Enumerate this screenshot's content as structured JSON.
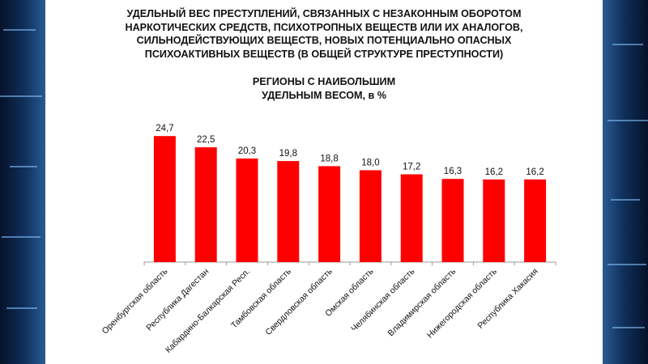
{
  "title_lines": [
    "УДЕЛЬНЫЙ ВЕС ПРЕСТУПЛЕНИЙ, СВЯЗАННЫХ С НЕЗАКОННЫМ ОБОРОТОМ",
    "НАРКОТИЧЕСКИХ СРЕДСТВ, ПСИХОТРОПНЫХ ВЕЩЕСТВ ИЛИ ИХ АНАЛОГОВ,",
    "СИЛЬНОДЕЙСТВУЮЩИХ ВЕЩЕСТВ, НОВЫХ ПОТЕНЦИАЛЬНО ОПАСНЫХ",
    "ПСИХОАКТИВНЫХ ВЕЩЕСТВ (В ОБЩЕЙ СТРУКТУРЕ ПРЕСТУПНОСТИ)"
  ],
  "subtitle_lines": [
    "РЕГИОНЫ С НАИБОЛЬШИМ",
    "УДЕЛЬНЫМ ВЕСОМ, в %"
  ],
  "colors": {
    "bar": "#ff0000",
    "axis": "#999999",
    "text": "#111111",
    "background": "#ffffff"
  },
  "chart_data": {
    "type": "bar",
    "title": "УДЕЛЬНЫЙ ВЕС ПРЕСТУПЛЕНИЙ, СВЯЗАННЫХ С НЕЗАКОННЫМ ОБОРОТОМ НАРКОТИЧЕСКИХ СРЕДСТВ, ПСИХОТРОПНЫХ ВЕЩЕСТВ ИЛИ ИХ АНАЛОГОВ, СИЛЬНОДЕЙСТВУЮЩИХ ВЕЩЕСТВ, НОВЫХ ПОТЕНЦИАЛЬНО ОПАСНЫХ ПСИХОАКТИВНЫХ ВЕЩЕСТВ (В ОБЩЕЙ СТРУКТУРЕ ПРЕСТУПНОСТИ)",
    "subtitle": "РЕГИОНЫ С НАИБОЛЬШИМ УДЕЛЬНЫМ ВЕСОМ, в %",
    "categories": [
      "Оренбургская область",
      "Республика Дагестан",
      "Кабардино-Балкарская Респ.",
      "Тамбовская область",
      "Свердловская область",
      "Омская область",
      "Челябинская область",
      "Владимирская область",
      "Нижегородская область",
      "Республика Хакасия"
    ],
    "values": [
      24.7,
      22.5,
      20.3,
      19.8,
      18.8,
      18.0,
      17.2,
      16.3,
      16.2,
      16.2
    ],
    "value_labels": [
      "24,7",
      "22,5",
      "20,3",
      "19,8",
      "18,8",
      "18,0",
      "17,2",
      "16,3",
      "16,2",
      "16,2"
    ],
    "xlabel": "",
    "ylabel": "",
    "ylim": [
      0,
      26
    ],
    "grid": false,
    "legend": "none"
  }
}
